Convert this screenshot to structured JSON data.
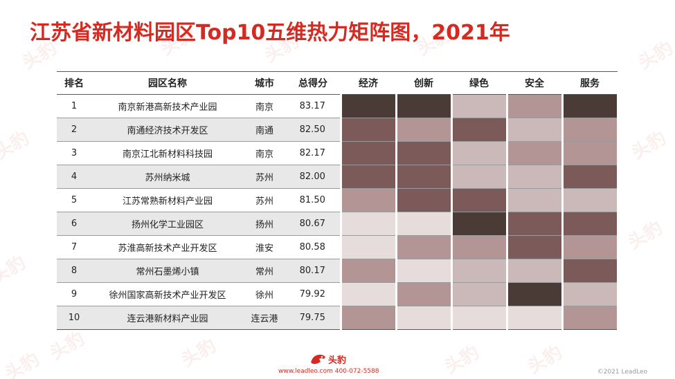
{
  "title": "江苏省新材料园区Top10五维热力矩阵图，2021年",
  "headers": [
    "排名",
    "园区名称",
    "城市",
    "总得分",
    "经济",
    "创新",
    "绿色",
    "安全",
    "服务"
  ],
  "chart_data": {
    "type": "heatmap",
    "title": "江苏省新材料园区Top10五维热力矩阵图，2021年",
    "dimensions": [
      "经济",
      "创新",
      "绿色",
      "安全",
      "服务"
    ],
    "rows": [
      {
        "rank": "1",
        "name": "南京新港高新技术产业园",
        "city": "南京",
        "score": "83.17",
        "levels": [
          5,
          5,
          2,
          3,
          5
        ]
      },
      {
        "rank": "2",
        "name": "南通经济技术开发区",
        "city": "南通",
        "score": "82.50",
        "levels": [
          4,
          3,
          4,
          2,
          3
        ]
      },
      {
        "rank": "3",
        "name": "南京江北新材料科技园",
        "city": "南京",
        "score": "82.17",
        "levels": [
          4,
          4,
          2,
          3,
          3
        ]
      },
      {
        "rank": "4",
        "name": "苏州纳米城",
        "city": "苏州",
        "score": "82.00",
        "levels": [
          4,
          4,
          2,
          2,
          4
        ]
      },
      {
        "rank": "5",
        "name": "江苏常熟新材料产业园",
        "city": "苏州",
        "score": "81.50",
        "levels": [
          3,
          4,
          4,
          2,
          2
        ]
      },
      {
        "rank": "6",
        "name": "扬州化学工业园区",
        "city": "扬州",
        "score": "80.67",
        "levels": [
          1,
          1,
          5,
          4,
          4
        ]
      },
      {
        "rank": "7",
        "name": "苏淮高新技术产业开发区",
        "city": "淮安",
        "score": "80.58",
        "levels": [
          1,
          3,
          3,
          4,
          3
        ]
      },
      {
        "rank": "8",
        "name": "常州石墨烯小镇",
        "city": "常州",
        "score": "80.17",
        "levels": [
          3,
          1,
          2,
          2,
          4
        ]
      },
      {
        "rank": "9",
        "name": "徐州国家高新技术产业开发区",
        "city": "徐州",
        "score": "79.92",
        "levels": [
          1,
          3,
          2,
          5,
          2
        ]
      },
      {
        "rank": "10",
        "name": "连云港新材料产业园",
        "city": "连云港",
        "score": "79.75",
        "levels": [
          3,
          1,
          1,
          1,
          3
        ]
      }
    ],
    "level_colors": [
      "#e6dcdc",
      "#cbb9b9",
      "#b39595",
      "#7d5a5a",
      "#4a3b37"
    ]
  },
  "footer": {
    "brand": "头豹",
    "contact": "www.leadleo.com  400-072-5588",
    "copyright": "©2021 LeadLeo"
  },
  "watermark_text": "头豹",
  "colors": {
    "title": "#d42a21",
    "zebra": "#e8e8e8"
  }
}
